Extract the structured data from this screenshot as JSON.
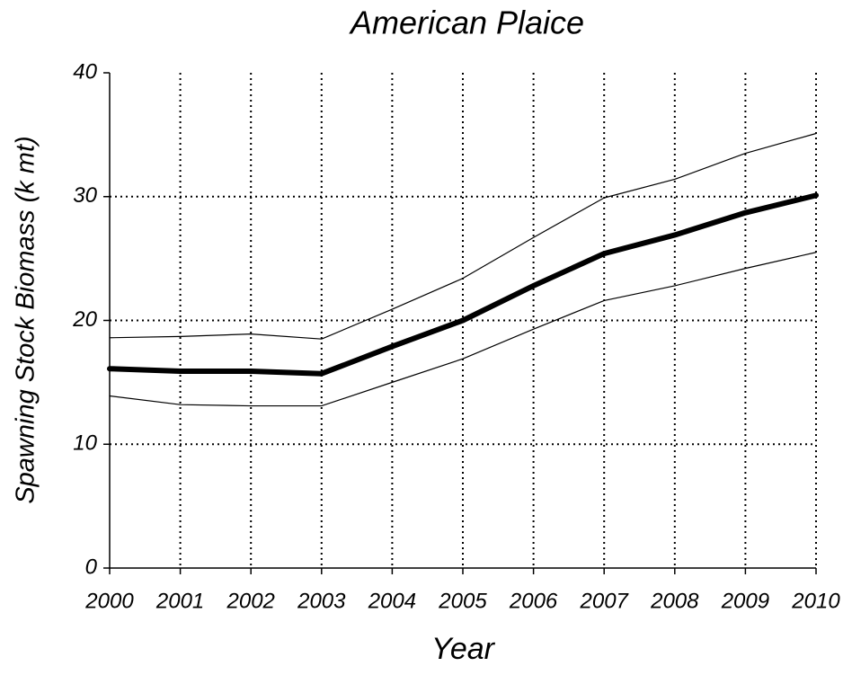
{
  "chart_data": {
    "type": "line",
    "title": "American Plaice",
    "xlabel": "Year",
    "ylabel": "Spawning Stock Biomass (k mt)",
    "x": [
      2000,
      2001,
      2002,
      2003,
      2004,
      2005,
      2006,
      2007,
      2008,
      2009,
      2010
    ],
    "series": [
      {
        "color": "#000000",
        "width": 6,
        "values": [
          16.1,
          15.9,
          15.9,
          15.7,
          17.9,
          20.0,
          22.8,
          25.4,
          26.9,
          28.7,
          30.1
        ]
      },
      {
        "color": "#000000",
        "width": 1.2,
        "values": [
          18.6,
          18.7,
          18.9,
          18.5,
          20.9,
          23.4,
          26.7,
          29.9,
          31.4,
          33.5,
          35.1
        ]
      },
      {
        "color": "#000000",
        "width": 1.2,
        "values": [
          13.9,
          13.2,
          13.1,
          13.1,
          15.0,
          16.9,
          19.3,
          21.6,
          22.8,
          24.2,
          25.5
        ]
      }
    ],
    "xlim": [
      2000,
      2010
    ],
    "xticks": [
      2000,
      2001,
      2002,
      2003,
      2004,
      2005,
      2006,
      2007,
      2008,
      2009,
      2010
    ],
    "ylim": [
      0,
      40
    ],
    "yticks": [
      0,
      10,
      20,
      30,
      40
    ],
    "grid": true
  }
}
